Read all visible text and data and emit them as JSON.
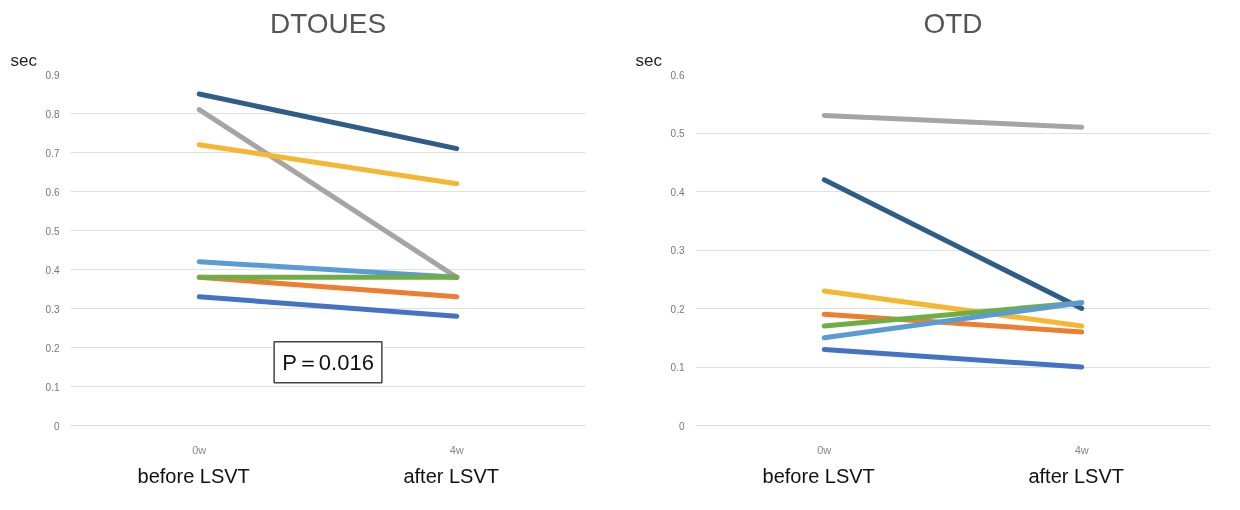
{
  "chart_data": [
    {
      "type": "line",
      "title": "DTOUES",
      "ylabel": "sec",
      "categories": [
        "0w",
        "4w"
      ],
      "ylim": [
        0,
        0.9
      ],
      "yticks": [
        0,
        0.1,
        0.2,
        0.3,
        0.4,
        0.5,
        0.6,
        0.7,
        0.8,
        0.9
      ],
      "grid": "y",
      "marker": "none",
      "line_style": "solid",
      "series": [
        {
          "color": "#2e5d8c",
          "values": [
            0.85,
            0.71
          ]
        },
        {
          "color": "#a5a5a5",
          "values": [
            0.81,
            0.38
          ]
        },
        {
          "color": "#f5b632",
          "values": [
            0.72,
            0.62
          ]
        },
        {
          "color": "#5b9bd5",
          "values": [
            0.42,
            0.38
          ]
        },
        {
          "color": "#ed7d31",
          "values": [
            0.38,
            0.33
          ]
        },
        {
          "color": "#70ad47",
          "values": [
            0.38,
            0.38
          ]
        },
        {
          "color": "#4472c4",
          "values": [
            0.33,
            0.28
          ]
        }
      ],
      "annotations": [
        "before   LSVT",
        "after   LSVT",
        "P＝0.016"
      ]
    },
    {
      "type": "line",
      "title": "OTD",
      "ylabel": "sec",
      "categories": [
        "0w",
        "4w"
      ],
      "ylim": [
        0,
        0.6
      ],
      "yticks": [
        0,
        0.1,
        0.2,
        0.3,
        0.4,
        0.5,
        0.6
      ],
      "grid": "y",
      "marker": "none",
      "line_style": "solid",
      "series": [
        {
          "color": "#a5a5a5",
          "values": [
            0.53,
            0.51
          ]
        },
        {
          "color": "#2e5d8c",
          "values": [
            0.42,
            0.2
          ]
        },
        {
          "color": "#f5b632",
          "values": [
            0.23,
            0.17
          ]
        },
        {
          "color": "#ed7d31",
          "values": [
            0.19,
            0.16
          ]
        },
        {
          "color": "#70ad47",
          "values": [
            0.17,
            0.21
          ]
        },
        {
          "color": "#5b9bd5",
          "values": [
            0.15,
            0.21
          ]
        },
        {
          "color": "#4472c4",
          "values": [
            0.13,
            0.1
          ]
        }
      ],
      "annotations": [
        "before   LSVT",
        "after   LSVT"
      ]
    }
  ]
}
